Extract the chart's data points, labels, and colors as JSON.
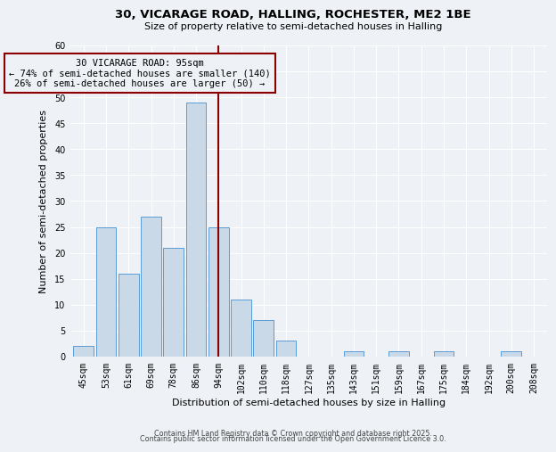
{
  "title_line1": "30, VICARAGE ROAD, HALLING, ROCHESTER, ME2 1BE",
  "title_line2": "Size of property relative to semi-detached houses in Halling",
  "xlabel": "Distribution of semi-detached houses by size in Halling",
  "ylabel": "Number of semi-detached properties",
  "categories": [
    "45sqm",
    "53sqm",
    "61sqm",
    "69sqm",
    "78sqm",
    "86sqm",
    "94sqm",
    "102sqm",
    "110sqm",
    "118sqm",
    "127sqm",
    "135sqm",
    "143sqm",
    "151sqm",
    "159sqm",
    "167sqm",
    "175sqm",
    "184sqm",
    "192sqm",
    "200sqm",
    "208sqm"
  ],
  "values": [
    2,
    25,
    16,
    27,
    21,
    49,
    25,
    11,
    7,
    3,
    0,
    0,
    1,
    0,
    1,
    0,
    1,
    0,
    0,
    1,
    0
  ],
  "bar_color": "#c9d9e8",
  "bar_edge_color": "#5b9bd5",
  "vline_x_index": 6,
  "vline_color": "#8b0000",
  "annotation_text": "30 VICARAGE ROAD: 95sqm\n← 74% of semi-detached houses are smaller (140)\n26% of semi-detached houses are larger (50) →",
  "annotation_box_color": "#8b0000",
  "ylim": [
    0,
    60
  ],
  "yticks": [
    0,
    5,
    10,
    15,
    20,
    25,
    30,
    35,
    40,
    45,
    50,
    55,
    60
  ],
  "footer_line1": "Contains HM Land Registry data © Crown copyright and database right 2025.",
  "footer_line2": "Contains public sector information licensed under the Open Government Licence 3.0.",
  "background_color": "#eef2f7",
  "grid_color": "#ffffff",
  "title_fontsize": 9.5,
  "subtitle_fontsize": 8.0,
  "xlabel_fontsize": 8.0,
  "ylabel_fontsize": 8.0,
  "tick_fontsize": 7.0,
  "annotation_fontsize": 7.5,
  "footer_fontsize": 5.8
}
